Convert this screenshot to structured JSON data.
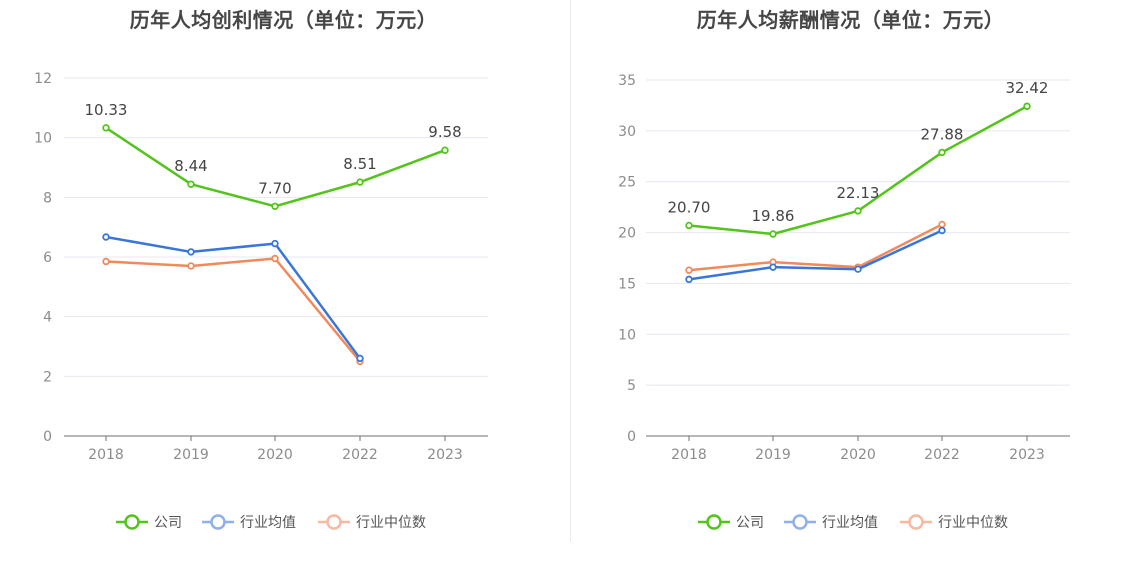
{
  "chart_data": [
    {
      "type": "line",
      "title": "历年人均创利情况（单位：万元）",
      "categories": [
        "2018",
        "2019",
        "2020",
        "2022",
        "2023"
      ],
      "ylim": [
        0,
        12
      ],
      "yticks": [
        0,
        2,
        4,
        6,
        8,
        10,
        12
      ],
      "grid": true,
      "legend_position": "bottom",
      "series": [
        {
          "name": "公司",
          "color": "#52c41a",
          "values": [
            10.33,
            8.44,
            7.7,
            8.51,
            9.58
          ],
          "labels": [
            "10.33",
            "8.44",
            "7.70",
            "8.51",
            "9.58"
          ]
        },
        {
          "name": "行业均值",
          "color": "#3a75d9",
          "values": [
            6.67,
            6.17,
            6.45,
            2.6,
            null
          ]
        },
        {
          "name": "行业中位数",
          "color": "#f08a5d",
          "values": [
            5.85,
            5.7,
            5.95,
            2.5,
            null
          ]
        }
      ]
    },
    {
      "type": "line",
      "title": "历年人均薪酬情况（单位：万元）",
      "categories": [
        "2018",
        "2019",
        "2020",
        "2022",
        "2023"
      ],
      "ylim": [
        0,
        35
      ],
      "yticks": [
        0,
        5,
        10,
        15,
        20,
        25,
        30,
        35
      ],
      "grid": true,
      "legend_position": "bottom",
      "series": [
        {
          "name": "公司",
          "color": "#52c41a",
          "values": [
            20.7,
            19.86,
            22.13,
            27.88,
            32.42
          ],
          "labels": [
            "20.70",
            "19.86",
            "22.13",
            "27.88",
            "32.42"
          ]
        },
        {
          "name": "行业均值",
          "color": "#3a75d9",
          "values": [
            15.4,
            16.6,
            16.4,
            20.2,
            null
          ]
        },
        {
          "name": "行业中位数",
          "color": "#f08a5d",
          "values": [
            16.3,
            17.1,
            16.6,
            20.8,
            null
          ]
        }
      ]
    }
  ],
  "legend": {
    "items": [
      {
        "label": "公司",
        "color": "#52c41a"
      },
      {
        "label": "行业均值",
        "color": "#3a75d9"
      },
      {
        "label": "行业中位数",
        "color": "#f08a5d"
      }
    ]
  }
}
